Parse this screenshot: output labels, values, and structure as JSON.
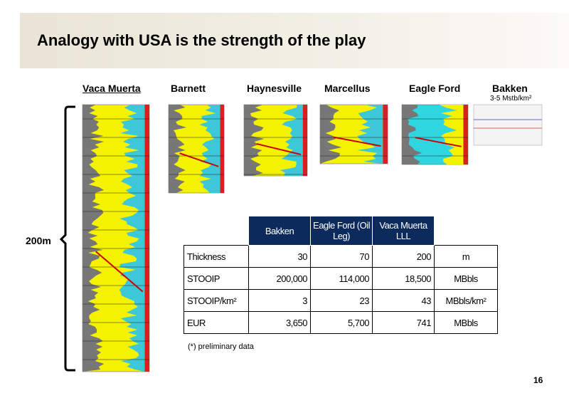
{
  "header": {
    "title": "Analogy with USA is the strength of the play"
  },
  "plays": [
    {
      "name": "Vaca Muerta"
    },
    {
      "name": "Barnett"
    },
    {
      "name": "Haynesville"
    },
    {
      "name": "Marcellus"
    },
    {
      "name": "Eagle Ford"
    },
    {
      "name": "Bakken",
      "note": "3-5 Mstb/km²"
    }
  ],
  "scale_label": "200m",
  "table": {
    "columns": [
      "Bakken",
      "Eagle Ford (Oil Leg)",
      "Vaca Muerta LLL"
    ],
    "rows": [
      [
        "Thickness",
        "30",
        "70",
        "200",
        "m"
      ],
      [
        "STOOIP",
        "200,000",
        "114,000",
        "18,500",
        "MBbls"
      ],
      [
        "STOOIP/km²",
        "3",
        "23",
        "43",
        "MBbls/km²"
      ],
      [
        "EUR",
        "3,650",
        "5,700",
        "741",
        "MBbls"
      ]
    ]
  },
  "footnote": "(*) preliminary data",
  "page_number": "16"
}
